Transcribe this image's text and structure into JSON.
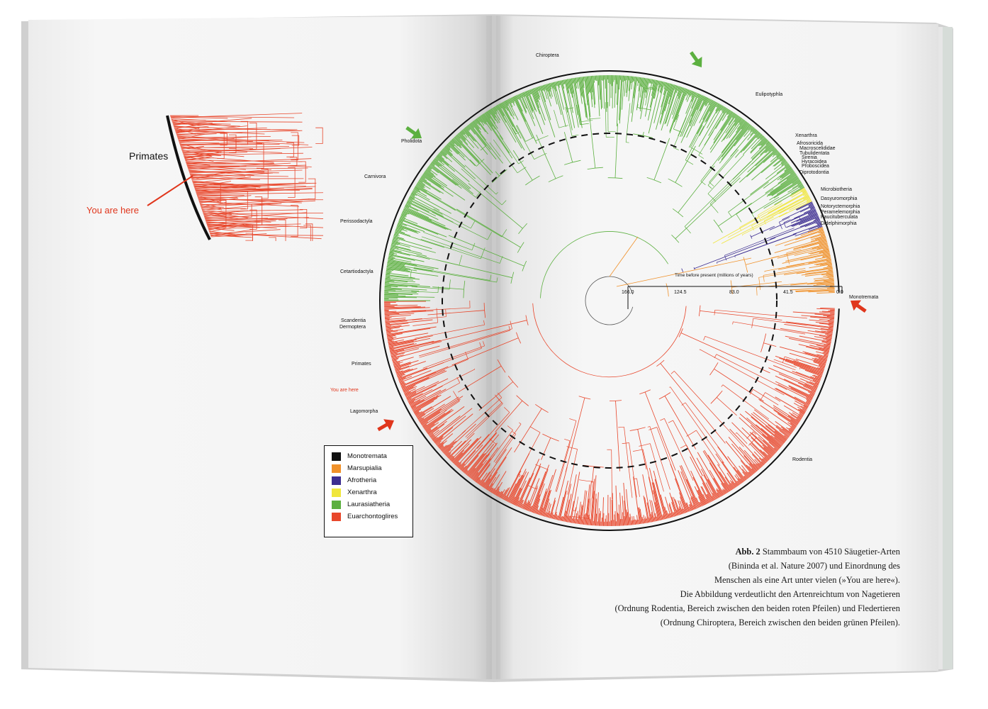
{
  "inset": {
    "group_label": "Primates",
    "marker_label": "You are here"
  },
  "legend": {
    "items": [
      {
        "label": "Monotremata",
        "color": "#111111"
      },
      {
        "label": "Marsupialia",
        "color": "#f0912a"
      },
      {
        "label": "Afrotheria",
        "color": "#3d2e91"
      },
      {
        "label": "Xenarthra",
        "color": "#f0e63c"
      },
      {
        "label": "Laurasiatheria",
        "color": "#5cb040"
      },
      {
        "label": "Euarchontoglires",
        "color": "#e8472c"
      }
    ]
  },
  "axis": {
    "title": "Time before present (millions of years)",
    "ticks": [
      "166.0",
      "124.5",
      "83.0",
      "41.5",
      "0.0"
    ]
  },
  "orders": {
    "chiroptera": "Chiroptera",
    "eulipotyphla": "Eulipotyphla",
    "pholidota": "Pholidota",
    "carnivora": "Carnivora",
    "perissodactyla": "Perissodactyla",
    "cetartiodactyla": "Cetartiodactyla",
    "scandentia": "Scandentia",
    "dermoptera": "Dermoptera",
    "primates": "Primates",
    "you_are_here": "You are here",
    "lagomorpha": "Lagomorpha",
    "rodentia": "Rodentia",
    "monotremata": "Monotremata",
    "xenarthra": "Xenarthra",
    "afrosoricida": "Afrosoricida",
    "macroscelididae": "Macroscelididae",
    "tubulidentata": "Tubulidentata",
    "sirenia": "Sirenia",
    "hyracoidea": "Hyracoidea",
    "proboscidea": "Proboscidea",
    "diprotodontia": "Diprotodontia",
    "microbiotheria": "Microbiotheria",
    "dasyuromorphia": "Dasyuromorphia",
    "notoryctemorphia": "Notoryctemorphia",
    "peramelemorphia": "Peramelemorphia",
    "paucituberculata": "Paucituberculata",
    "didelphimorphia": "Didelphimorphia"
  },
  "caption": {
    "figure_label": "Abb. 2",
    "lines": [
      " Stammbaum von 4510 Säugetier-Arten",
      "(Bininda  et al. Nature 2007) und Einordnung des",
      "Menschen als eine Art unter vielen (»You are here«).",
      "Die Abbildung verdeutlicht den Artenreichtum von Nagetieren",
      "(Ordnung Rodentia, Bereich zwischen den beiden roten Pfeilen) und Fledertieren",
      "(Ordnung Chiroptera, Bereich zwischen den beiden grünen Pfeilen)."
    ]
  }
}
